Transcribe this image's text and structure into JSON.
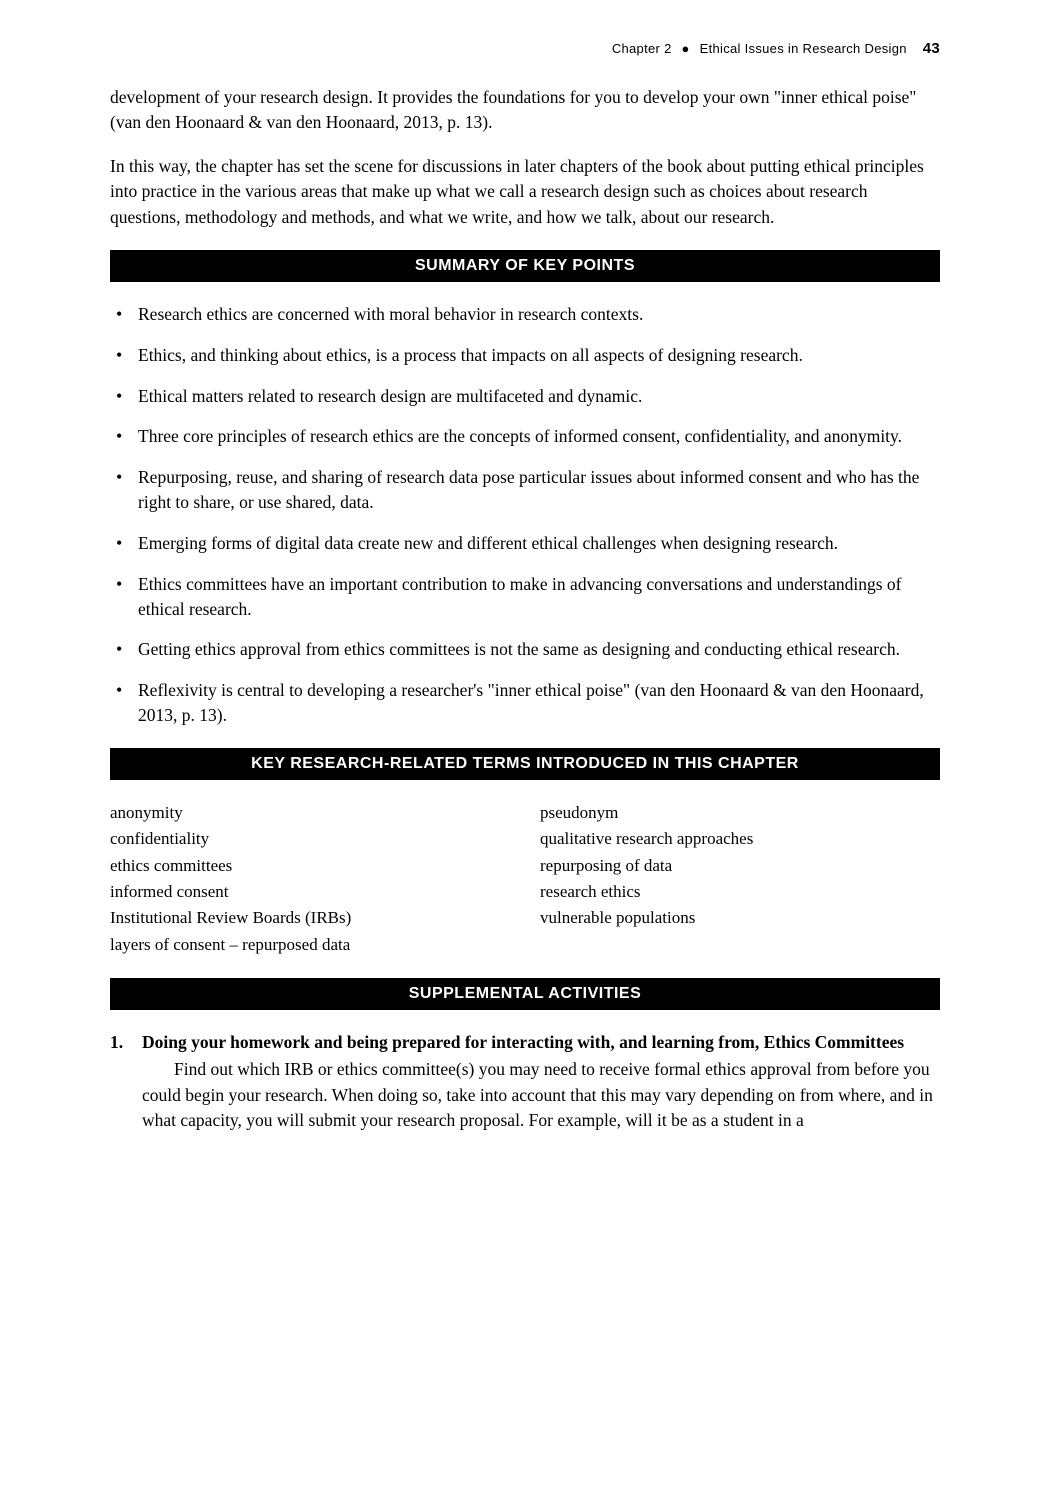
{
  "header": {
    "chapter_label": "Chapter 2",
    "bullet": "●",
    "chapter_title": "Ethical Issues in Research Design",
    "page_number": "43"
  },
  "intro": {
    "p1": "development of your research design. It provides the foundations for you to develop your own \"inner ethical poise\" (van den Hoonaard & van den Hoonaard, 2013, p. 13).",
    "p2": "In this way, the chapter has set the scene for discussions in later chapters of the book about putting ethical principles into practice in the various areas that make up what we call a research design such as choices about research questions, methodology and methods, and what we write, and how we talk, about our research."
  },
  "sections": {
    "summary_title": "SUMMARY OF KEY POINTS",
    "terms_title": "KEY RESEARCH-RELATED TERMS INTRODUCED IN THIS CHAPTER",
    "supplemental_title": "SUPPLEMENTAL ACTIVITIES"
  },
  "summary_points": [
    "Research ethics are concerned with moral behavior in research contexts.",
    "Ethics, and thinking about ethics, is a process that impacts on all aspects of designing research.",
    "Ethical matters related to research design are multifaceted and dynamic.",
    "Three core principles of research ethics are the concepts of informed consent, confidentiality, and anonymity.",
    "Repurposing, reuse, and sharing of research data pose particular issues about informed consent and who has the right to share, or use shared, data.",
    "Emerging forms of digital data create new and different ethical challenges when designing research.",
    "Ethics committees have an important contribution to make in advancing conversations and understandings of ethical research.",
    "Getting ethics approval from ethics committees is not the same as designing and conducting ethical research.",
    "Reflexivity is central to developing a researcher's \"inner ethical poise\" (van den Hoonaard & van den Hoonaard, 2013, p. 13)."
  ],
  "terms": {
    "left": [
      "anonymity",
      "confidentiality",
      "ethics committees",
      "informed consent",
      "Institutional Review Boards (IRBs)",
      "layers of consent – repurposed data"
    ],
    "right": [
      "pseudonym",
      "qualitative research approaches",
      "repurposing of data",
      "research ethics",
      "vulnerable populations"
    ]
  },
  "activities": [
    {
      "title": "Doing your homework and being prepared for interacting with, and learning from, Ethics Committees",
      "body": "Find out which IRB or ethics committee(s) you may need to receive formal ethics approval from before you could begin your research. When doing so, take into account that this may vary depending on from where, and in what capacity, you will submit your research proposal. For example, will it be as a student in a"
    }
  ]
}
